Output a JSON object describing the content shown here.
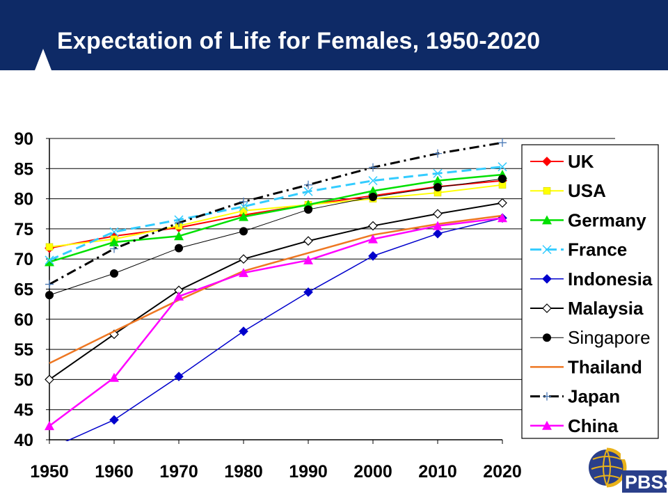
{
  "slide": {
    "title": "Expectation of Life for Females, 1950-2020"
  },
  "logo": {
    "text": "PBSS",
    "fine_print": [
      "",
      ""
    ]
  },
  "chart_data": {
    "type": "line",
    "title": "",
    "xlabel": "",
    "ylabel": "",
    "x": [
      1950,
      1960,
      1970,
      1980,
      1990,
      2000,
      2010,
      2020
    ],
    "xlim": [
      1950,
      2020
    ],
    "ylim": [
      40,
      90
    ],
    "yticks": [
      40,
      45,
      50,
      55,
      60,
      65,
      70,
      75,
      80,
      85,
      90
    ],
    "grid": "horizontal",
    "legend": "right",
    "series": [
      {
        "name": "UK",
        "color": "#ff0000",
        "marker": "diamond",
        "dash": "solid",
        "width": 2,
        "values": [
          71.8,
          73.8,
          75.2,
          77.3,
          79.0,
          80.5,
          82.0,
          83.0
        ]
      },
      {
        "name": "USA",
        "color": "#ffff00",
        "marker": "square",
        "dash": "solid",
        "width": 2,
        "values": [
          72.0,
          73.3,
          75.5,
          78.0,
          79.0,
          80.0,
          81.0,
          82.3
        ]
      },
      {
        "name": "Germany",
        "color": "#00e000",
        "marker": "triangle",
        "dash": "solid",
        "width": 2.5,
        "values": [
          69.5,
          72.8,
          73.8,
          77.0,
          79.0,
          81.3,
          83.0,
          84.0
        ]
      },
      {
        "name": "France",
        "color": "#33ccff",
        "marker": "x",
        "dash": "dash",
        "width": 3,
        "values": [
          69.8,
          74.5,
          76.5,
          78.7,
          81.2,
          83.0,
          84.2,
          85.3
        ]
      },
      {
        "name": "Indonesia",
        "color": "#0000cc",
        "marker": "diamond",
        "dash": "solid",
        "width": 1.5,
        "values": [
          38.5,
          43.3,
          50.5,
          58.0,
          64.5,
          70.5,
          74.2,
          76.8
        ]
      },
      {
        "name": "Malaysia",
        "color": "#000000",
        "marker": "open-diamond",
        "dash": "solid",
        "width": 2,
        "values": [
          50.0,
          57.5,
          64.8,
          70.0,
          73.0,
          75.5,
          77.5,
          79.3
        ]
      },
      {
        "name": "Singapore",
        "color": "#000000",
        "marker": "circle",
        "dash": "solid",
        "width": 1,
        "values": [
          64.0,
          67.6,
          71.8,
          74.6,
          78.2,
          80.3,
          81.9,
          83.3
        ]
      },
      {
        "name": "Thailand",
        "color": "#ee7722",
        "marker": "none",
        "dash": "solid",
        "width": 2.5,
        "values": [
          52.7,
          58.0,
          63.2,
          68.0,
          71.0,
          74.0,
          75.8,
          77.2
        ]
      },
      {
        "name": "Japan",
        "color": "#000000",
        "marker": "plus",
        "dash": "dashdot",
        "width": 3,
        "values": [
          65.8,
          71.7,
          76.0,
          79.5,
          82.3,
          85.2,
          87.5,
          89.3
        ]
      },
      {
        "name": "China",
        "color": "#ff00ff",
        "marker": "triangle",
        "dash": "solid",
        "width": 2.5,
        "values": [
          42.3,
          50.3,
          63.8,
          67.7,
          69.8,
          73.3,
          75.5,
          76.8
        ]
      }
    ]
  }
}
